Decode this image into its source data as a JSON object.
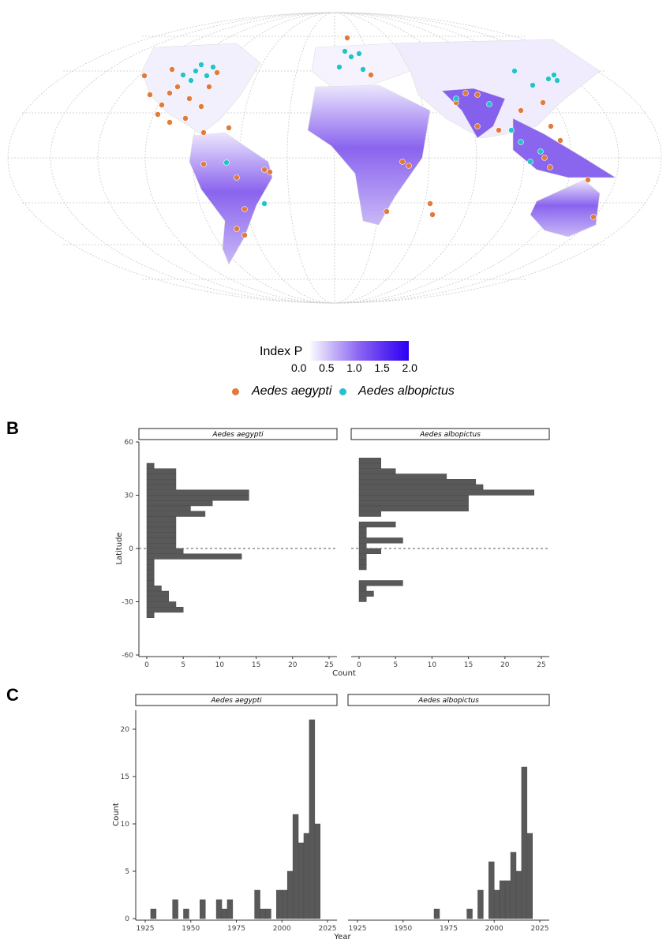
{
  "colors": {
    "aegypti": "#e07b39",
    "albopictus": "#22c3c9",
    "bar": "#595959",
    "index_low": "#ffffff",
    "index_high": "#2b00f2",
    "map_fill": "#8866ee"
  },
  "panel_a": {
    "legend": {
      "index_title": "Index P",
      "index_ticks": [
        "0.0",
        "0.5",
        "1.0",
        "1.5",
        "2.0"
      ],
      "species": [
        "Aedes aegypti",
        "Aedes albopictus"
      ]
    }
  },
  "panel_b": {
    "letter": "B",
    "ylabel": "Latitude",
    "xlabel": "Count"
  },
  "panel_c": {
    "letter": "C",
    "ylabel": "Count",
    "xlabel": "Year"
  },
  "chart_data": [
    {
      "type": "bar",
      "orientation": "horizontal",
      "panel": "B",
      "facets": [
        "Aedes aegypti",
        "Aedes albopictus"
      ],
      "xlabel": "Count",
      "ylabel": "Latitude",
      "xlim": [
        0,
        25
      ],
      "ylim": [
        -60,
        60
      ],
      "xticks": [
        0,
        5,
        10,
        15,
        20,
        25
      ],
      "yticks": [
        -60,
        -30,
        0,
        30,
        60
      ],
      "bin_width": 3,
      "reference_line": 0,
      "series": [
        {
          "name": "Aedes aegypti",
          "bins": [
            {
              "lat": 46.5,
              "count": 1
            },
            {
              "lat": 43.5,
              "count": 4
            },
            {
              "lat": 40.5,
              "count": 4
            },
            {
              "lat": 37.5,
              "count": 4
            },
            {
              "lat": 34.5,
              "count": 4
            },
            {
              "lat": 31.5,
              "count": 14
            },
            {
              "lat": 28.5,
              "count": 14
            },
            {
              "lat": 25.5,
              "count": 9
            },
            {
              "lat": 22.5,
              "count": 6
            },
            {
              "lat": 19.5,
              "count": 8
            },
            {
              "lat": 16.5,
              "count": 4
            },
            {
              "lat": 13.5,
              "count": 4
            },
            {
              "lat": 10.5,
              "count": 4
            },
            {
              "lat": 7.5,
              "count": 4
            },
            {
              "lat": 4.5,
              "count": 4
            },
            {
              "lat": 1.5,
              "count": 4
            },
            {
              "lat": -1.5,
              "count": 5
            },
            {
              "lat": -4.5,
              "count": 13
            },
            {
              "lat": -7.5,
              "count": 1
            },
            {
              "lat": -10.5,
              "count": 1
            },
            {
              "lat": -13.5,
              "count": 1
            },
            {
              "lat": -16.5,
              "count": 1
            },
            {
              "lat": -19.5,
              "count": 1
            },
            {
              "lat": -22.5,
              "count": 2
            },
            {
              "lat": -25.5,
              "count": 3
            },
            {
              "lat": -28.5,
              "count": 3
            },
            {
              "lat": -31.5,
              "count": 4
            },
            {
              "lat": -34.5,
              "count": 5
            },
            {
              "lat": -37.5,
              "count": 1
            }
          ]
        },
        {
          "name": "Aedes albopictus",
          "bins": [
            {
              "lat": 49.5,
              "count": 3
            },
            {
              "lat": 46.5,
              "count": 3
            },
            {
              "lat": 43.5,
              "count": 5
            },
            {
              "lat": 40.5,
              "count": 12
            },
            {
              "lat": 37.5,
              "count": 16
            },
            {
              "lat": 34.5,
              "count": 17
            },
            {
              "lat": 31.5,
              "count": 24
            },
            {
              "lat": 28.5,
              "count": 15
            },
            {
              "lat": 25.5,
              "count": 15
            },
            {
              "lat": 22.5,
              "count": 15
            },
            {
              "lat": 19.5,
              "count": 3
            },
            {
              "lat": 13.5,
              "count": 5
            },
            {
              "lat": 10.5,
              "count": 1
            },
            {
              "lat": 7.5,
              "count": 1
            },
            {
              "lat": 4.5,
              "count": 6
            },
            {
              "lat": 1.5,
              "count": 1
            },
            {
              "lat": -1.5,
              "count": 3
            },
            {
              "lat": -4.5,
              "count": 1
            },
            {
              "lat": -7.5,
              "count": 1
            },
            {
              "lat": -10.5,
              "count": 1
            },
            {
              "lat": -19.5,
              "count": 6
            },
            {
              "lat": -22.5,
              "count": 1
            },
            {
              "lat": -25.5,
              "count": 2
            },
            {
              "lat": -28.5,
              "count": 1
            }
          ]
        }
      ]
    },
    {
      "type": "bar",
      "panel": "C",
      "facets": [
        "Aedes aegypti",
        "Aedes albopictus"
      ],
      "xlabel": "Year",
      "ylabel": "Count",
      "xlim": [
        1925,
        2025
      ],
      "ylim": [
        0,
        22
      ],
      "xticks": [
        1925,
        1950,
        1975,
        2000,
        2025
      ],
      "yticks": [
        0,
        5,
        10,
        15,
        20
      ],
      "bin_width": 3,
      "series": [
        {
          "name": "Aedes aegypti",
          "bins": [
            {
              "year": 1929.5,
              "count": 1
            },
            {
              "year": 1941.5,
              "count": 2
            },
            {
              "year": 1947.5,
              "count": 1
            },
            {
              "year": 1956.5,
              "count": 2
            },
            {
              "year": 1965.5,
              "count": 2
            },
            {
              "year": 1968.5,
              "count": 1
            },
            {
              "year": 1971.5,
              "count": 2
            },
            {
              "year": 1986.5,
              "count": 3
            },
            {
              "year": 1989.5,
              "count": 1
            },
            {
              "year": 1992.5,
              "count": 1
            },
            {
              "year": 1998.5,
              "count": 3
            },
            {
              "year": 2001.5,
              "count": 3
            },
            {
              "year": 2004.5,
              "count": 5
            },
            {
              "year": 2007.5,
              "count": 11
            },
            {
              "year": 2010.5,
              "count": 8
            },
            {
              "year": 2013.5,
              "count": 9
            },
            {
              "year": 2016.5,
              "count": 21
            },
            {
              "year": 2019.5,
              "count": 10
            }
          ]
        },
        {
          "name": "Aedes albopictus",
          "bins": [
            {
              "year": 1968.5,
              "count": 1
            },
            {
              "year": 1986.5,
              "count": 1
            },
            {
              "year": 1992.5,
              "count": 3
            },
            {
              "year": 1998.5,
              "count": 6
            },
            {
              "year": 2001.5,
              "count": 3
            },
            {
              "year": 2004.5,
              "count": 4
            },
            {
              "year": 2007.5,
              "count": 4
            },
            {
              "year": 2010.5,
              "count": 7
            },
            {
              "year": 2013.5,
              "count": 5
            },
            {
              "year": 2016.5,
              "count": 16
            },
            {
              "year": 2019.5,
              "count": 9
            }
          ]
        }
      ]
    }
  ]
}
